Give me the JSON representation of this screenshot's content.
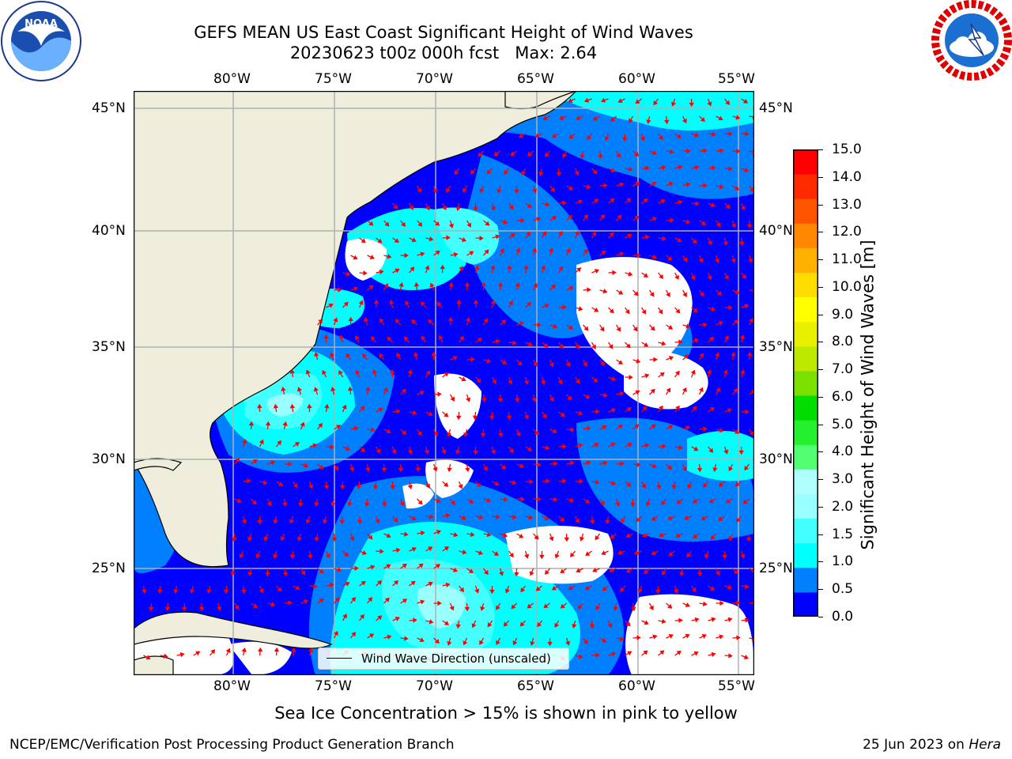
{
  "title": {
    "line1": "GEFS MEAN US East Coast Significant Height of Wind Waves",
    "line2": "20230623 t00z 000h fcst   Max: 2.64"
  },
  "logos": {
    "left": {
      "name": "NOAA",
      "ring_text": "NATIONAL OCEANIC AND ATMOSPHERIC ADMINISTRATION · U.S. DEPARTMENT OF COMMERCE"
    },
    "right": {
      "name": "NATIONAL WEATHER SERVICE"
    }
  },
  "map": {
    "lon_ticks": [
      "80°W",
      "75°W",
      "70°W",
      "65°W",
      "60°W",
      "55°W"
    ],
    "lat_ticks": [
      "45°N",
      "40°N",
      "35°N",
      "30°N",
      "25°N"
    ],
    "colors": {
      "land": "#efeedd",
      "coast": "#000000",
      "grid": "#b0b0b0",
      "arrow": "#ff0000",
      "no_data": "#ffffff"
    },
    "legend": "Wind Wave Direction (unscaled)"
  },
  "colorbar": {
    "label": "Significant Height of Wind Waves [m]",
    "ticks": [
      "15.0",
      "14.0",
      "13.0",
      "12.0",
      "11.0",
      "10.0",
      "9.0",
      "8.0",
      "7.0",
      "6.0",
      "5.0",
      "4.0",
      "3.0",
      "2.0",
      "1.5",
      "1.0",
      "0.5",
      "0.0"
    ],
    "colors": [
      "#0000ff",
      "#0080ff",
      "#00ffff",
      "#44ffff",
      "#99ffff",
      "#b0ffff",
      "#52ff73",
      "#24f02e",
      "#00dd00",
      "#7be000",
      "#bfe800",
      "#e8f000",
      "#ffff00",
      "#ffdd00",
      "#ffb000",
      "#ff8800",
      "#ff5500",
      "#ff2a00",
      "#ff0000"
    ]
  },
  "subtitle": "Sea Ice Concentration > 15% is shown in pink to yellow",
  "footer": {
    "left": "NCEP/EMC/Verification Post Processing Product Generation Branch",
    "right_prefix": "25 Jun 2023 on ",
    "right_machine": "Hera"
  }
}
